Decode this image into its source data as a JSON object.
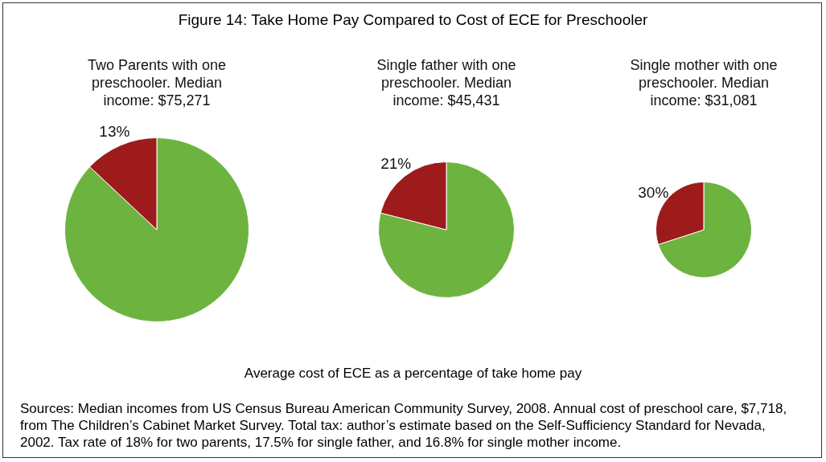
{
  "chart_data": [
    {
      "type": "pie",
      "title": "Two Parents with one preschooler. Median income: $75,271",
      "categories": [
        null,
        null
      ],
      "values": [
        87,
        13
      ],
      "colors": [
        "#6db33f",
        "#9e1b1b"
      ],
      "value_labels": [
        null,
        "13%"
      ]
    },
    {
      "type": "pie",
      "title": "Single father with one preschooler. Median income: $45,431",
      "categories": [
        null,
        null
      ],
      "values": [
        79,
        21
      ],
      "colors": [
        "#6db33f",
        "#9e1b1b"
      ],
      "value_labels": [
        null,
        "21%"
      ]
    },
    {
      "type": "pie",
      "title": "Single mother with one preschooler. Median income: $31,081",
      "categories": [
        null,
        null
      ],
      "values": [
        70,
        30
      ],
      "colors": [
        "#6db33f",
        "#9e1b1b"
      ],
      "value_labels": [
        null,
        "30%"
      ]
    },
    {
      "type": "other",
      "title": "Figure 14: Take Home Pay Compared to Cost of ECE for Preschooler",
      "annotations": [
        "Average cost of ECE as a percentage of take home pay",
        "Sources: Median incomes from US Census Bureau American Community Survey, 2008. Annual cost of preschool care, $7,718, from The Children’s Cabinet Market Survey. Total tax: author’s estimate based on the Self-Sufficiency Standard for Nevada, 2002. Tax rate of 18% for two parents, 17.5% for single father, and 16.8% for single mother income."
      ]
    }
  ]
}
